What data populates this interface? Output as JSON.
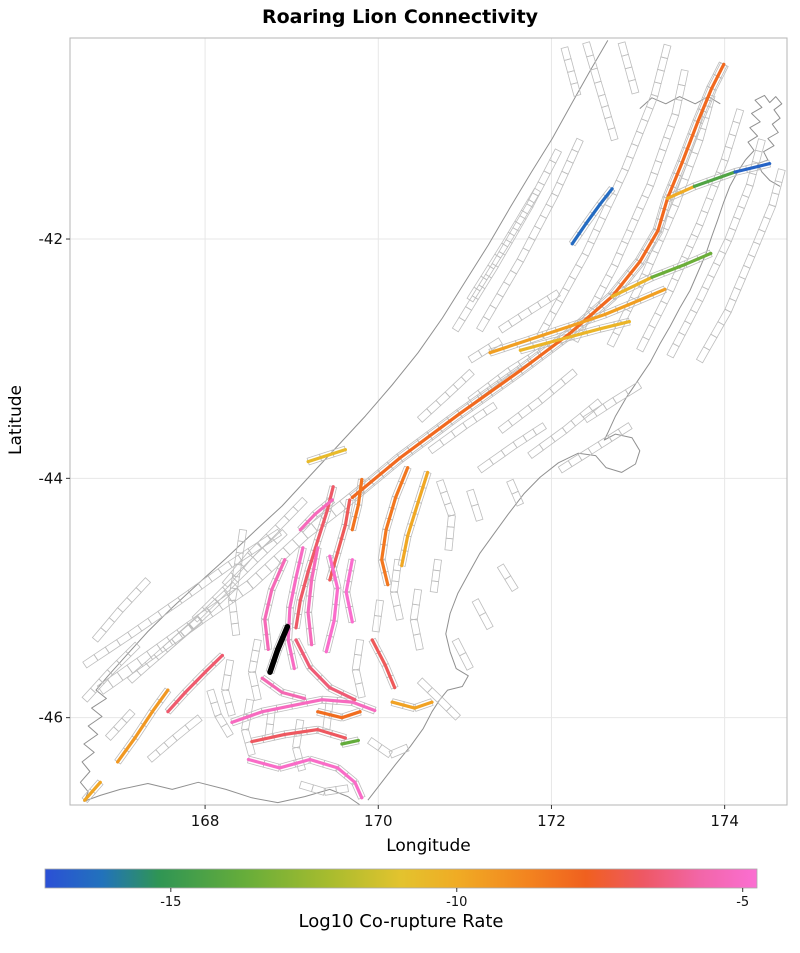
{
  "figure": {
    "title": "Roaring Lion Connectivity",
    "xlabel": "Longitude",
    "ylabel": "Latitude",
    "colorbar_label": "Log10 Co-rupture Rate"
  },
  "chart_data": {
    "type": "map",
    "title": "Roaring Lion Connectivity",
    "xlabel": "Longitude",
    "ylabel": "Latitude",
    "xlim": [
      166.44,
      174.72
    ],
    "ylim": [
      -46.73,
      -40.32
    ],
    "xticks": [
      168,
      170,
      172,
      174
    ],
    "yticks": [
      -42,
      -44,
      -46
    ],
    "grid": true,
    "legend": "colorbar-bottom",
    "colorbar": {
      "label": "Log10 Co-rupture Rate",
      "min": -17.2,
      "max": -4.75,
      "ticks": [
        -15,
        -10,
        -5
      ],
      "stops": [
        [
          0,
          "#2b50d6"
        ],
        [
          0.08,
          "#2272bc"
        ],
        [
          0.16,
          "#2f9554"
        ],
        [
          0.28,
          "#66ad3a"
        ],
        [
          0.4,
          "#a8bc2e"
        ],
        [
          0.5,
          "#e3c32e"
        ],
        [
          0.58,
          "#f0ab24"
        ],
        [
          0.68,
          "#f3831f"
        ],
        [
          0.76,
          "#f0601f"
        ],
        [
          0.84,
          "#ee5864"
        ],
        [
          0.92,
          "#f266a8"
        ],
        [
          1,
          "#fb6ed2"
        ]
      ]
    },
    "highlight_fault": {
      "color": "#000000",
      "points": [
        168.95,
        -45.24,
        168.84,
        -45.43,
        168.75,
        -45.62
      ]
    },
    "ruptures": [
      {
        "rate": -8.0,
        "points": [
          169.7,
          -44.16,
          170.25,
          -43.83,
          170.94,
          -43.46,
          171.64,
          -43.1,
          172.21,
          -42.79,
          172.7,
          -42.48,
          173.02,
          -42.19,
          173.23,
          -41.93,
          173.34,
          -41.66,
          173.51,
          -41.36,
          173.69,
          -41.02,
          173.85,
          -40.74,
          173.99,
          -40.54
        ]
      },
      {
        "rate": -10.0,
        "points": [
          173.34,
          -41.66,
          173.65,
          -41.56
        ]
      },
      {
        "rate": -14.3,
        "points": [
          173.65,
          -41.56,
          174.12,
          -41.44
        ]
      },
      {
        "rate": -16.6,
        "points": [
          174.12,
          -41.44,
          174.52,
          -41.37
        ]
      },
      {
        "rate": -10.3,
        "points": [
          172.7,
          -42.48,
          173.16,
          -42.32
        ]
      },
      {
        "rate": -13.6,
        "points": [
          173.16,
          -42.32,
          173.55,
          -42.21,
          173.84,
          -42.12
        ]
      },
      {
        "rate": -16.4,
        "points": [
          172.24,
          -42.04,
          172.4,
          -41.87,
          172.56,
          -41.71,
          172.7,
          -41.58
        ]
      },
      {
        "rate": -9.6,
        "points": [
          171.29,
          -42.95,
          171.75,
          -42.84,
          172.21,
          -42.73,
          172.62,
          -42.63,
          173.02,
          -42.51,
          173.31,
          -42.42
        ]
      },
      {
        "rate": -10.4,
        "points": [
          171.64,
          -42.93,
          172.1,
          -42.84,
          172.56,
          -42.75,
          172.9,
          -42.69
        ]
      },
      {
        "rate": -10.6,
        "points": [
          169.19,
          -43.86,
          169.62,
          -43.76
        ]
      },
      {
        "rate": -6.7,
        "points": [
          169.48,
          -44.07,
          169.41,
          -44.27,
          169.3,
          -44.52,
          169.19,
          -44.78,
          169.1,
          -45.02,
          169.05,
          -45.25
        ]
      },
      {
        "rate": -6.9,
        "points": [
          169.67,
          -44.18,
          169.62,
          -44.39,
          169.53,
          -44.62,
          169.44,
          -44.85
        ]
      },
      {
        "rate": -8.3,
        "points": [
          169.81,
          -44.01,
          169.77,
          -44.22,
          169.7,
          -44.43
        ]
      },
      {
        "rate": -8.4,
        "points": [
          170.34,
          -43.91,
          170.2,
          -44.16,
          170.09,
          -44.43,
          170.04,
          -44.68,
          170.11,
          -44.89
        ]
      },
      {
        "rate": -9.9,
        "points": [
          170.57,
          -43.95,
          170.46,
          -44.2,
          170.34,
          -44.48,
          170.27,
          -44.73
        ]
      },
      {
        "rate": -5.1,
        "points": [
          169.13,
          -44.58,
          169.05,
          -44.83,
          168.98,
          -45.08,
          168.96,
          -45.35,
          169.03,
          -45.59
        ]
      },
      {
        "rate": -5.3,
        "points": [
          169.3,
          -44.58,
          169.23,
          -44.85,
          169.19,
          -45.12,
          169.23,
          -45.39
        ]
      },
      {
        "rate": -4.9,
        "points": [
          169.44,
          -44.65,
          169.53,
          -44.92,
          169.49,
          -45.19,
          169.4,
          -45.45
        ]
      },
      {
        "rate": -5.4,
        "points": [
          168.92,
          -44.68,
          168.77,
          -44.93,
          168.69,
          -45.18,
          168.73,
          -45.43
        ]
      },
      {
        "rate": -6.6,
        "points": [
          167.57,
          -45.95,
          167.77,
          -45.79,
          168.0,
          -45.62,
          168.2,
          -45.48
        ]
      },
      {
        "rate": -9.4,
        "points": [
          166.99,
          -46.37,
          167.19,
          -46.17,
          167.39,
          -45.95,
          167.57,
          -45.77
        ]
      },
      {
        "rate": -9.8,
        "points": [
          166.61,
          -46.69,
          166.79,
          -46.54
        ]
      },
      {
        "rate": -5.2,
        "points": [
          168.31,
          -46.04,
          168.66,
          -45.95,
          169.0,
          -45.9,
          169.35,
          -45.85,
          169.7,
          -45.87,
          169.96,
          -45.94
        ]
      },
      {
        "rate": -6.8,
        "points": [
          168.54,
          -46.2,
          168.92,
          -46.14,
          169.3,
          -46.1,
          169.62,
          -46.17
        ]
      },
      {
        "rate": -5.0,
        "points": [
          168.5,
          -46.35,
          168.86,
          -46.42,
          169.21,
          -46.35,
          169.53,
          -46.42,
          169.73,
          -46.54,
          169.81,
          -46.67
        ]
      },
      {
        "rate": -8.1,
        "points": [
          169.3,
          -45.95,
          169.58,
          -46.0,
          169.79,
          -45.95
        ]
      },
      {
        "rate": -9.7,
        "points": [
          170.16,
          -45.87,
          170.42,
          -45.92,
          170.62,
          -45.87
        ]
      },
      {
        "rate": -13.8,
        "points": [
          169.58,
          -46.22,
          169.77,
          -46.19
        ]
      },
      {
        "rate": -5.5,
        "points": [
          168.66,
          -45.67,
          168.89,
          -45.79,
          169.15,
          -45.84
        ]
      },
      {
        "rate": -6.5,
        "points": [
          169.05,
          -45.35,
          169.21,
          -45.58,
          169.44,
          -45.75,
          169.73,
          -45.85
        ]
      },
      {
        "rate": -5.3,
        "points": [
          169.1,
          -44.43,
          169.27,
          -44.3,
          169.47,
          -44.18
        ]
      },
      {
        "rate": -4.85,
        "points": [
          169.7,
          -44.68,
          169.63,
          -44.95,
          169.7,
          -45.2
        ]
      },
      {
        "rate": -6.9,
        "points": [
          169.93,
          -45.35,
          170.08,
          -45.56,
          170.19,
          -45.75
        ]
      }
    ],
    "fault_sections": [
      [
        166.79,
        -45.77,
        167.36,
        -45.48,
        167.94,
        -45.18,
        168.52,
        -44.89,
        169.15,
        -44.47,
        169.7,
        -44.16,
        170.25,
        -43.83,
        170.94,
        -43.46,
        171.64,
        -43.1,
        172.21,
        -42.79,
        172.7,
        -42.48,
        173.02,
        -42.19,
        173.23,
        -41.93,
        173.34,
        -41.66,
        173.51,
        -41.36,
        173.69,
        -41.02,
        173.85,
        -40.74,
        173.99,
        -40.54
      ],
      [
        166.61,
        -45.56,
        167.13,
        -45.31,
        167.71,
        -45.02,
        168.29,
        -44.72,
        168.86,
        -44.45
      ],
      [
        171.87,
        -42.81,
        172.39,
        -42.13,
        172.85,
        -41.42,
        173.19,
        -40.8,
        173.34,
        -40.38
      ],
      [
        172.27,
        -42.85,
        172.73,
        -42.22,
        173.14,
        -41.55,
        173.43,
        -40.96,
        173.54,
        -40.59
      ],
      [
        172.68,
        -42.89,
        173.08,
        -42.3,
        173.43,
        -41.72,
        173.71,
        -41.17,
        173.85,
        -40.8
      ],
      [
        173.02,
        -42.93,
        173.37,
        -42.43,
        173.71,
        -41.88,
        174.0,
        -41.34,
        174.18,
        -40.92
      ],
      [
        173.37,
        -42.98,
        173.71,
        -42.51,
        174.04,
        -42.01,
        174.29,
        -41.55,
        174.43,
        -41.17
      ],
      [
        173.71,
        -43.02,
        174.04,
        -42.6,
        174.31,
        -42.14,
        174.55,
        -41.72,
        174.66,
        -41.42
      ],
      [
        172.4,
        -40.36,
        172.58,
        -40.8,
        172.73,
        -41.17
      ],
      [
        172.81,
        -40.36,
        172.97,
        -40.78
      ],
      [
        172.15,
        -40.4,
        172.3,
        -40.8
      ],
      [
        171.17,
        -42.76,
        171.64,
        -42.18,
        172.04,
        -41.63,
        172.33,
        -41.17
      ],
      [
        170.89,
        -42.76,
        171.35,
        -42.22,
        171.75,
        -41.72,
        172.08,
        -41.26
      ],
      [
        171.06,
        -42.51,
        171.46,
        -42.05,
        171.84,
        -41.59
      ],
      [
        171.06,
        -43.35,
        171.52,
        -43.1,
        171.98,
        -42.89
      ],
      [
        171.41,
        -43.6,
        171.87,
        -43.35,
        172.27,
        -43.11
      ],
      [
        171.75,
        -43.81,
        172.15,
        -43.6,
        172.56,
        -43.36
      ],
      [
        172.1,
        -43.93,
        172.56,
        -43.72,
        172.91,
        -43.56
      ],
      [
        171.17,
        -43.93,
        171.58,
        -43.72,
        171.92,
        -43.56
      ],
      [
        170.6,
        -43.77,
        171.0,
        -43.56,
        171.35,
        -43.39
      ],
      [
        172.39,
        -43.51,
        172.73,
        -43.35,
        173.02,
        -43.22
      ],
      [
        170.71,
        -44.02,
        170.85,
        -44.31,
        170.81,
        -44.6
      ],
      [
        171.06,
        -44.1,
        171.17,
        -44.35
      ],
      [
        170.48,
        -43.51,
        170.8,
        -43.3,
        171.08,
        -43.11
      ],
      [
        171.41,
        -42.76,
        171.75,
        -42.6,
        172.08,
        -42.45
      ],
      [
        171.06,
        -43.01,
        171.41,
        -42.85
      ],
      [
        168.23,
        -44.89,
        168.52,
        -44.64,
        168.84,
        -44.41,
        169.15,
        -44.18
      ],
      [
        167.88,
        -45.18,
        168.23,
        -44.93,
        168.58,
        -44.68,
        168.92,
        -44.45
      ],
      [
        167.54,
        -45.43,
        167.94,
        -45.17,
        168.35,
        -44.89
      ],
      [
        167.13,
        -45.69,
        167.54,
        -45.43,
        167.94,
        -45.18
      ],
      [
        168.44,
        -44.43,
        168.38,
        -44.72,
        168.31,
        -45.02,
        168.36,
        -45.31
      ],
      [
        168.61,
        -45.35,
        168.54,
        -45.62,
        168.61,
        -45.85
      ],
      [
        168.29,
        -45.52,
        168.23,
        -45.77,
        168.31,
        -45.98
      ],
      [
        168.06,
        -45.77,
        168.15,
        -45.98,
        168.29,
        -46.15
      ],
      [
        168.52,
        -45.85,
        168.46,
        -46.1,
        168.54,
        -46.31
      ],
      [
        168.77,
        -45.94,
        168.73,
        -46.17
      ],
      [
        169.1,
        -46.02,
        169.05,
        -46.25,
        169.12,
        -46.44
      ],
      [
        169.44,
        -45.85,
        169.4,
        -46.1
      ],
      [
        169.79,
        -45.35,
        169.74,
        -45.6,
        169.81,
        -45.83
      ],
      [
        170.02,
        -45.02,
        169.97,
        -45.28
      ],
      [
        170.23,
        -44.68,
        170.18,
        -44.95,
        170.25,
        -45.18
      ],
      [
        170.46,
        -44.93,
        170.41,
        -45.18,
        170.48,
        -45.43
      ],
      [
        170.69,
        -44.68,
        170.64,
        -44.95
      ],
      [
        169.9,
        -46.19,
        170.14,
        -46.31,
        170.34,
        -46.25
      ],
      [
        169.1,
        -46.56,
        169.38,
        -46.62,
        169.65,
        -46.59
      ],
      [
        170.48,
        -45.69,
        170.71,
        -45.85,
        170.92,
        -46.0
      ],
      [
        170.89,
        -45.35,
        171.06,
        -45.59
      ],
      [
        171.12,
        -45.02,
        171.29,
        -45.25
      ],
      [
        171.41,
        -44.73,
        171.58,
        -44.93
      ],
      [
        171.52,
        -44.02,
        171.64,
        -44.22
      ],
      [
        166.73,
        -45.35,
        167.02,
        -45.1,
        167.34,
        -44.85
      ],
      [
        166.61,
        -45.85,
        166.9,
        -45.62,
        167.22,
        -45.39
      ],
      [
        166.88,
        -46.17,
        167.16,
        -45.95
      ],
      [
        167.36,
        -46.35,
        167.65,
        -46.17,
        167.94,
        -46.0
      ]
    ],
    "coastlines": [
      [
        172.65,
        -40.34,
        172.45,
        -40.59,
        172.24,
        -40.86,
        172.01,
        -41.16,
        171.77,
        -41.44,
        171.52,
        -41.74,
        171.27,
        -42.05,
        171.0,
        -42.36,
        170.74,
        -42.66,
        170.46,
        -42.95,
        170.16,
        -43.22,
        169.85,
        -43.48,
        169.53,
        -43.73,
        169.21,
        -43.98,
        168.89,
        -44.23,
        168.56,
        -44.45,
        168.24,
        -44.67,
        167.92,
        -44.88,
        167.62,
        -45.08,
        167.34,
        -45.28,
        167.09,
        -45.48,
        166.88,
        -45.65,
        166.74,
        -45.77,
        166.86,
        -45.84,
        166.69,
        -45.92,
        166.81,
        -45.99,
        166.65,
        -46.07,
        166.76,
        -46.14,
        166.6,
        -46.22,
        166.72,
        -46.29,
        166.58,
        -46.37,
        166.67,
        -46.45,
        166.56,
        -46.54,
        166.65,
        -46.62,
        166.6,
        -46.7,
        166.79,
        -46.65,
        167.02,
        -46.6,
        167.34,
        -46.55,
        167.62,
        -46.6,
        167.92,
        -46.54,
        168.24,
        -46.6,
        168.54,
        -46.67,
        168.84,
        -46.71,
        169.15,
        -46.66,
        169.44,
        -46.6,
        169.65,
        -46.66,
        169.79,
        -46.73
      ],
      [
        169.88,
        -46.69,
        170.04,
        -46.54,
        170.2,
        -46.39,
        170.37,
        -46.24,
        170.52,
        -46.09,
        170.62,
        -45.95,
        170.71,
        -45.85,
        170.8,
        -45.77,
        170.97,
        -45.74,
        171.04,
        -45.65,
        170.9,
        -45.59,
        170.83,
        -45.45,
        170.78,
        -45.3,
        170.83,
        -45.13,
        170.92,
        -44.96,
        171.04,
        -44.8,
        171.17,
        -44.63,
        171.33,
        -44.47,
        171.5,
        -44.3,
        171.68,
        -44.13,
        171.87,
        -43.99,
        172.08,
        -43.87,
        172.31,
        -43.79,
        172.51,
        -43.81,
        172.63,
        -43.91,
        172.81,
        -43.95,
        172.97,
        -43.88,
        173.02,
        -43.77,
        172.93,
        -43.66,
        172.74,
        -43.63,
        172.61,
        -43.68,
        172.65,
        -43.62,
        172.74,
        -43.48,
        172.86,
        -43.33,
        173.0,
        -43.18,
        173.14,
        -43.03,
        173.25,
        -42.88,
        173.37,
        -42.73,
        173.48,
        -42.58,
        173.6,
        -42.43,
        173.69,
        -42.28,
        173.78,
        -42.13,
        173.85,
        -41.98,
        173.92,
        -41.84,
        173.99,
        -41.69,
        174.06,
        -41.56,
        174.15,
        -41.44,
        174.24,
        -41.34
      ],
      [
        174.24,
        -41.34,
        174.34,
        -41.26,
        174.27,
        -41.19,
        174.38,
        -41.14,
        174.29,
        -41.07,
        174.41,
        -41.02,
        174.31,
        -40.95,
        174.43,
        -40.9,
        174.35,
        -40.84,
        174.46,
        -40.8,
        174.52,
        -40.86,
        174.59,
        -40.81,
        174.66,
        -40.87,
        174.57,
        -40.92,
        174.64,
        -40.99,
        174.55,
        -41.04,
        174.62,
        -41.11,
        174.5,
        -41.16,
        174.57,
        -41.22,
        174.45,
        -41.27,
        174.5,
        -41.34,
        174.38,
        -41.37,
        174.43,
        -41.44,
        174.52,
        -41.51,
        174.64,
        -41.56
      ],
      [
        173.02,
        -40.91,
        173.16,
        -40.82,
        173.32,
        -40.87,
        173.48,
        -40.81,
        173.66,
        -40.87,
        173.81,
        -40.81,
        173.95,
        -40.87
      ]
    ],
    "styles": {
      "coast": "#909090",
      "sections": "#bdbdbd",
      "grid": "#e7e7e7",
      "frame": "#b5b5b5",
      "tick": "#333333",
      "label_color": "#111111"
    }
  }
}
